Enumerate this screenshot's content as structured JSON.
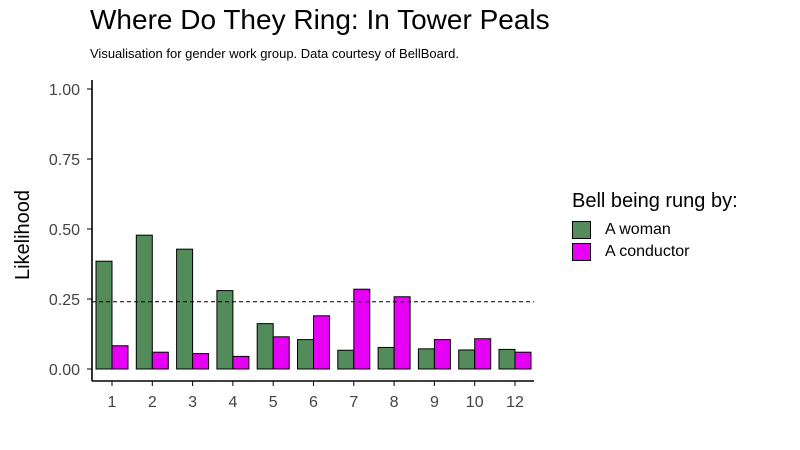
{
  "chart_data": {
    "type": "bar",
    "title": "Where Do They Ring: In Tower Peals",
    "subtitle": "Visualisation for gender work group. Data courtesy of BellBoard.",
    "xlabel": "",
    "ylabel": "Likelihood",
    "ylim": [
      0,
      1
    ],
    "yticks": [
      "0.00",
      "0.25",
      "0.50",
      "0.75",
      "1.00"
    ],
    "categories": [
      "1",
      "2",
      "3",
      "4",
      "5",
      "6",
      "7",
      "8",
      "9",
      "10",
      "12"
    ],
    "series": [
      {
        "name": "A woman",
        "color": "#548b5a",
        "values": [
          0.385,
          0.478,
          0.428,
          0.28,
          0.162,
          0.105,
          0.067,
          0.077,
          0.072,
          0.068,
          0.07
        ]
      },
      {
        "name": "A conductor",
        "color": "#e600f5",
        "values": [
          0.083,
          0.06,
          0.055,
          0.045,
          0.115,
          0.19,
          0.285,
          0.258,
          0.105,
          0.108,
          0.06
        ]
      }
    ],
    "reference_line": {
      "y": 0.24,
      "style": "dashed"
    },
    "grid": false,
    "legend": {
      "title": "Bell being rung by:",
      "position": "right"
    }
  }
}
